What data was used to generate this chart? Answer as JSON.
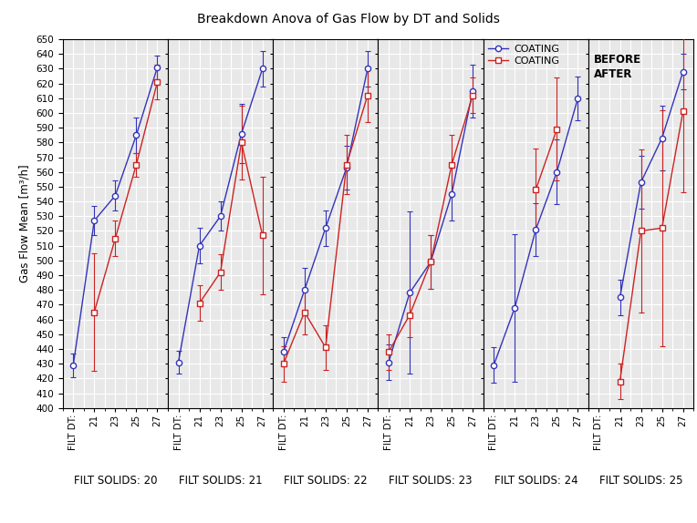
{
  "title": "Breakdown Anova of Gas Flow by DT and Solids",
  "ylabel": "Gas Flow Mean [m³/h]",
  "xlabel_base": "FILT SOLIDS: ",
  "xlabels": [
    "FILT DT:",
    "21",
    "23",
    "25",
    "27"
  ],
  "ylim": [
    400,
    650
  ],
  "solids": [
    20,
    21,
    22,
    23,
    24,
    25
  ],
  "blue_color": "#3333bb",
  "red_color": "#cc2222",
  "bg_color": "#e8e8e8",
  "grid_color": "white",
  "panels": [
    {
      "solid": 20,
      "blue_y": [
        429,
        527,
        544,
        585,
        631
      ],
      "blue_yerr": [
        8,
        10,
        10,
        12,
        8
      ],
      "red_y": [
        null,
        465,
        515,
        565,
        621
      ],
      "red_yerr": [
        null,
        40,
        12,
        8,
        12
      ],
      "blue_has_filt": true,
      "red_has_filt": false
    },
    {
      "solid": 21,
      "blue_y": [
        431,
        510,
        530,
        586,
        630
      ],
      "blue_yerr": [
        8,
        12,
        10,
        20,
        12
      ],
      "red_y": [
        null,
        471,
        492,
        580,
        517
      ],
      "red_yerr": [
        null,
        12,
        12,
        25,
        40
      ],
      "blue_has_filt": true,
      "red_has_filt": false
    },
    {
      "solid": 22,
      "blue_y": [
        438,
        480,
        522,
        563,
        630
      ],
      "blue_yerr": [
        10,
        15,
        12,
        15,
        12
      ],
      "red_y": [
        430,
        465,
        441,
        565,
        612
      ],
      "red_yerr": [
        12,
        15,
        15,
        20,
        18
      ],
      "blue_has_filt": true,
      "red_has_filt": true
    },
    {
      "solid": 23,
      "blue_y": [
        431,
        478,
        499,
        545,
        615
      ],
      "blue_yerr": [
        12,
        55,
        18,
        18,
        18
      ],
      "red_y": [
        438,
        463,
        499,
        565,
        612
      ],
      "red_yerr": [
        12,
        15,
        18,
        20,
        12
      ],
      "blue_has_filt": true,
      "red_has_filt": true
    },
    {
      "solid": 24,
      "blue_y": [
        429,
        468,
        521,
        560,
        610
      ],
      "blue_yerr": [
        12,
        50,
        18,
        22,
        15
      ],
      "red_y": [
        null,
        null,
        548,
        589,
        null
      ],
      "red_yerr": [
        null,
        null,
        28,
        35,
        null
      ],
      "blue_has_filt": true,
      "red_has_filt": false
    },
    {
      "solid": 25,
      "blue_y": [
        null,
        475,
        553,
        583,
        628
      ],
      "blue_yerr": [
        null,
        12,
        18,
        22,
        12
      ],
      "red_y": [
        null,
        418,
        520,
        522,
        601
      ],
      "red_yerr": [
        null,
        12,
        55,
        80,
        55
      ],
      "blue_has_filt": false,
      "red_has_filt": false
    }
  ]
}
